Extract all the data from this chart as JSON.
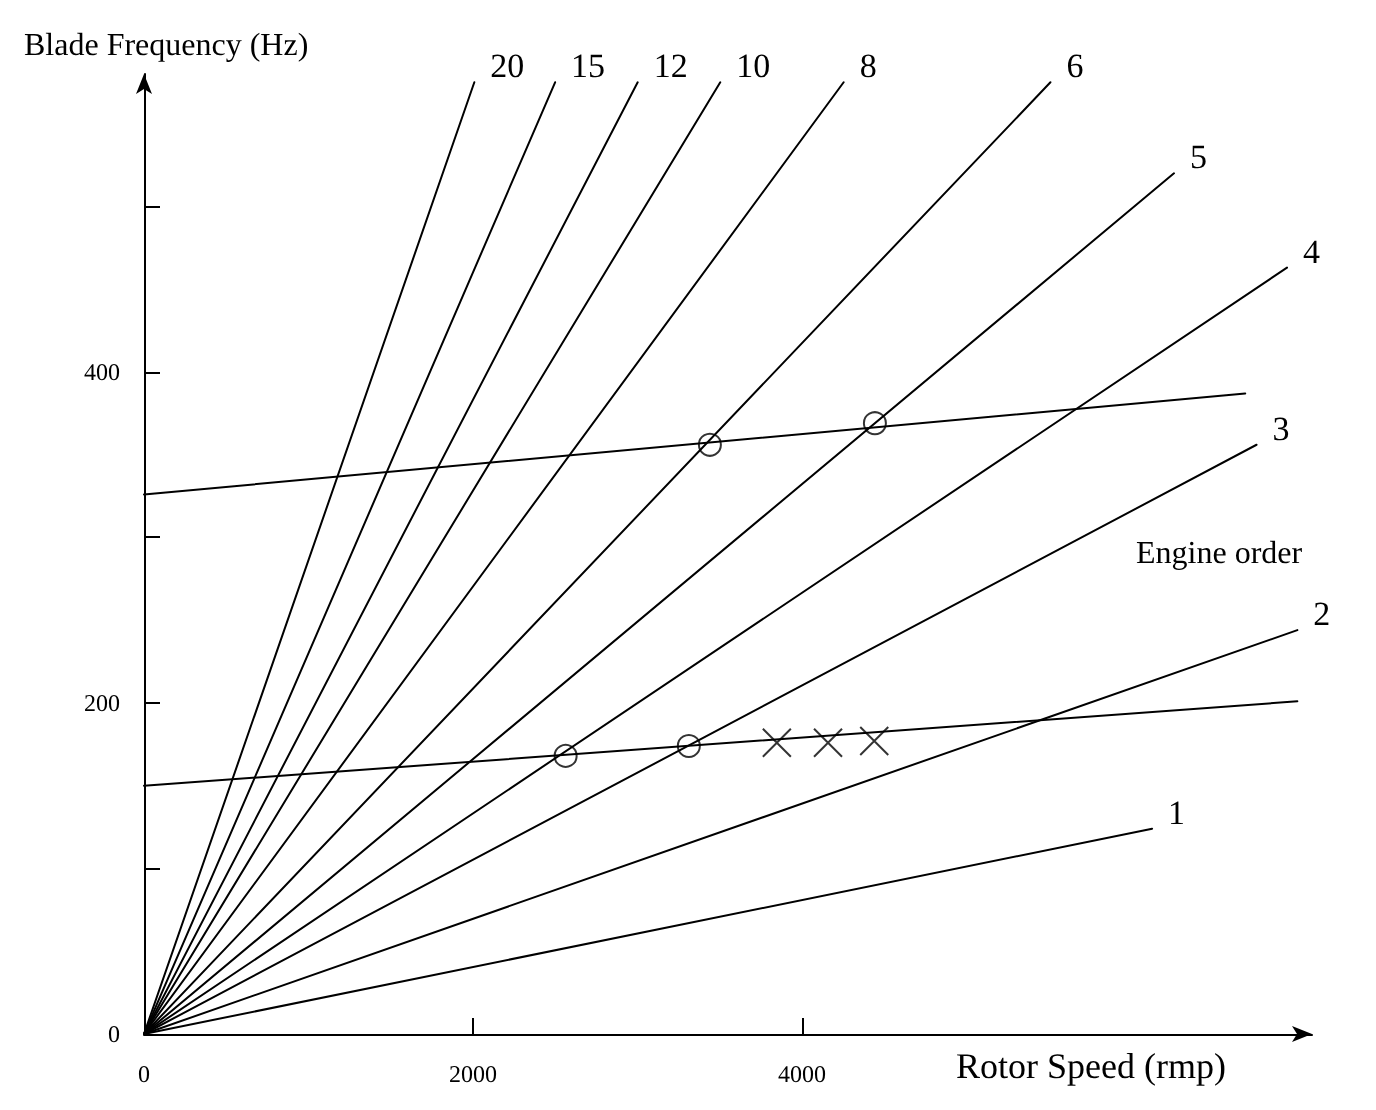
{
  "chart_data": {
    "type": "line",
    "xlabel": "Rotor Speed (rmp)",
    "ylabel": "Blade Frequency (Hz)",
    "annotations": [
      "Engine order"
    ],
    "xlim": [
      0,
      7100
    ],
    "ylim": [
      0,
      580
    ],
    "xticks": [
      0,
      2000,
      4000
    ],
    "yticks": [
      0,
      {
        "value": 100,
        "label": null
      },
      200,
      {
        "value": 300,
        "label": null
      },
      400,
      {
        "value": 500,
        "label": null
      }
    ],
    "marker": "none",
    "line_style": "solid",
    "series": [
      {
        "name": "1",
        "color": "#000000",
        "x": [
          0,
          6128
        ],
        "values": [
          0,
          124
        ]
      },
      {
        "name": "2",
        "color": "#000000",
        "x": [
          0,
          7011
        ],
        "values": [
          0,
          244
        ]
      },
      {
        "name": "3",
        "color": "#000000",
        "x": [
          0,
          6763
        ],
        "values": [
          0,
          356
        ]
      },
      {
        "name": "4",
        "color": "#000000",
        "x": [
          0,
          6948
        ],
        "values": [
          0,
          463
        ]
      },
      {
        "name": "5",
        "color": "#000000",
        "x": [
          0,
          6261
        ],
        "values": [
          0,
          520
        ]
      },
      {
        "name": "6",
        "color": "#000000",
        "x": [
          0,
          5510
        ],
        "values": [
          0,
          575
        ]
      },
      {
        "name": "8",
        "color": "#000000",
        "x": [
          0,
          4253
        ],
        "values": [
          0,
          575
        ]
      },
      {
        "name": "10",
        "color": "#000000",
        "x": [
          0,
          3503
        ],
        "values": [
          0,
          575
        ]
      },
      {
        "name": "12",
        "color": "#000000",
        "x": [
          0,
          3001
        ],
        "values": [
          0,
          575
        ]
      },
      {
        "name": "15",
        "color": "#000000",
        "x": [
          0,
          2499
        ],
        "values": [
          0,
          575
        ]
      },
      {
        "name": "20",
        "color": "#000000",
        "x": [
          0,
          2008
        ],
        "values": [
          0,
          575
        ]
      },
      {
        "color": "#000000",
        "x": [
          0,
          7011
        ],
        "values": [
          150,
          201
        ]
      },
      {
        "color": "#000000",
        "x": [
          0,
          6694
        ],
        "values": [
          326,
          387
        ]
      },
      {
        "type": "scatter",
        "marker": "circle",
        "color": "#000000",
        "x": [
          2563,
          3312,
          3440,
          4443
        ],
        "values": [
          168,
          174,
          356,
          369
        ]
      },
      {
        "type": "scatter",
        "marker": "cross",
        "color": "#000000",
        "x": [
          3847,
          4158,
          4439
        ],
        "values": [
          176,
          176,
          177
        ]
      }
    ]
  }
}
